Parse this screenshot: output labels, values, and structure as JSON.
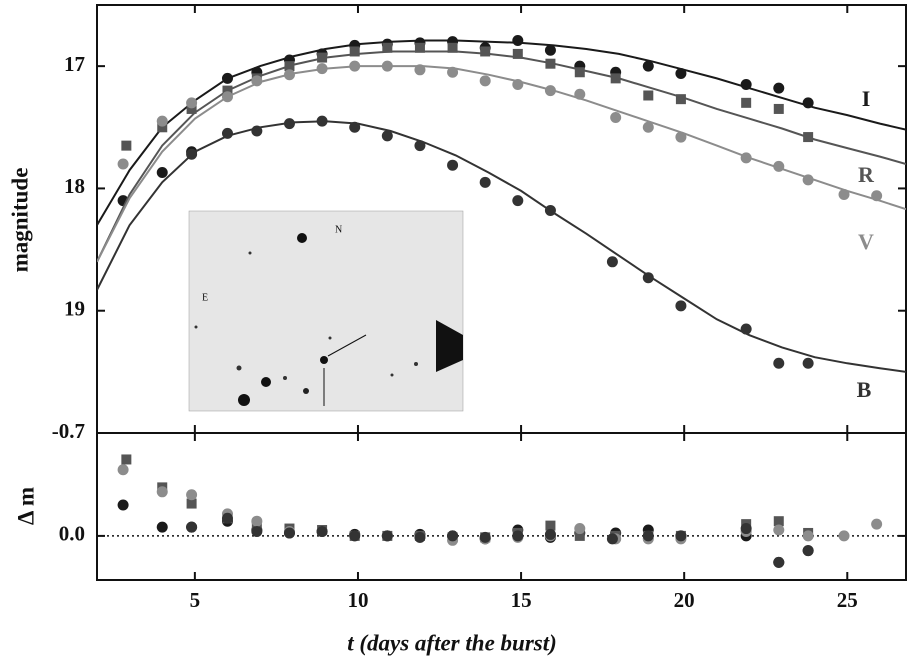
{
  "chart_data": [
    {
      "type": "scatter",
      "ylabel": "magnitude",
      "xlim": [
        2,
        26.8
      ],
      "xticks": [
        5,
        10,
        15,
        20,
        25
      ],
      "ylim": [
        20,
        16.5
      ],
      "yticks": [
        17,
        18,
        19
      ],
      "inset": {
        "labels": [
          "N",
          "E"
        ]
      },
      "series": [
        {
          "name": "I",
          "color": "#1a1a1a",
          "marker": "circle",
          "x": [
            2.8,
            4,
            4.9,
            6,
            6.9,
            7.9,
            8.9,
            9.9,
            10.9,
            11.9,
            12.9,
            13.9,
            14.9,
            15.9,
            16.8,
            17.9,
            18.9,
            19.9,
            21.9,
            22.9,
            23.8
          ],
          "values": [
            18.1,
            17.87,
            17.7,
            17.1,
            17.05,
            16.95,
            16.9,
            16.83,
            16.82,
            16.81,
            16.8,
            16.85,
            16.79,
            16.87,
            17.0,
            17.05,
            17.0,
            17.06,
            17.15,
            17.18,
            17.3
          ],
          "fit": [
            18.3,
            17.85,
            17.5,
            17.28,
            17.1,
            17.0,
            16.92,
            16.86,
            16.82,
            16.8,
            16.79,
            16.79,
            16.8,
            16.81,
            16.83,
            16.86,
            16.9,
            16.96,
            17.03,
            17.1,
            17.18,
            17.26,
            17.34,
            17.4,
            17.47,
            17.52
          ]
        },
        {
          "name": "R",
          "color": "#555555",
          "marker": "square",
          "x": [
            2.9,
            4,
            4.9,
            6,
            6.9,
            7.9,
            8.9,
            9.9,
            10.9,
            11.9,
            12.9,
            13.9,
            14.9,
            15.9,
            16.8,
            17.9,
            18.9,
            19.9,
            21.9,
            22.9,
            23.8
          ],
          "values": [
            17.65,
            17.5,
            17.35,
            17.2,
            17.1,
            17.0,
            16.93,
            16.88,
            16.85,
            16.85,
            16.85,
            16.88,
            16.9,
            16.98,
            17.05,
            17.1,
            17.24,
            17.27,
            17.3,
            17.35,
            17.58
          ],
          "fit": [
            18.6,
            18.05,
            17.65,
            17.38,
            17.2,
            17.08,
            16.99,
            16.93,
            16.9,
            16.88,
            16.88,
            16.88,
            16.9,
            16.93,
            16.98,
            17.04,
            17.1,
            17.18,
            17.26,
            17.35,
            17.43,
            17.51,
            17.6,
            17.67,
            17.74,
            17.8
          ]
        },
        {
          "name": "V",
          "color": "#8c8c8c",
          "marker": "circle",
          "x": [
            2.8,
            4,
            4.9,
            6,
            6.9,
            7.9,
            8.9,
            9.9,
            10.9,
            11.9,
            12.9,
            13.9,
            14.9,
            15.9,
            16.8,
            17.9,
            18.9,
            19.9,
            21.9,
            22.9,
            23.8,
            24.9,
            25.9
          ],
          "values": [
            17.8,
            17.45,
            17.3,
            17.25,
            17.12,
            17.07,
            17.02,
            17.0,
            17.0,
            17.03,
            17.05,
            17.12,
            17.15,
            17.2,
            17.23,
            17.42,
            17.5,
            17.58,
            17.75,
            17.82,
            17.93,
            18.05,
            18.06
          ],
          "fit": [
            18.6,
            18.08,
            17.7,
            17.43,
            17.25,
            17.13,
            17.06,
            17.02,
            17.0,
            17.0,
            17.0,
            17.02,
            17.07,
            17.13,
            17.2,
            17.28,
            17.37,
            17.46,
            17.55,
            17.65,
            17.75,
            17.84,
            17.93,
            18.02,
            18.1,
            18.17
          ]
        },
        {
          "name": "B",
          "color": "#333333",
          "marker": "circle",
          "x": [
            4.9,
            6,
            6.9,
            7.9,
            8.9,
            9.9,
            10.9,
            11.9,
            12.9,
            13.9,
            14.9,
            15.9,
            17.8,
            18.9,
            19.9,
            21.9,
            22.9,
            23.8
          ],
          "values": [
            17.72,
            17.55,
            17.53,
            17.47,
            17.45,
            17.5,
            17.57,
            17.65,
            17.81,
            17.95,
            18.1,
            18.18,
            18.6,
            18.73,
            18.96,
            19.15,
            19.43,
            19.43
          ],
          "fit": [
            18.83,
            18.3,
            17.95,
            17.7,
            17.57,
            17.5,
            17.46,
            17.45,
            17.47,
            17.53,
            17.62,
            17.73,
            17.87,
            18.02,
            18.2,
            18.37,
            18.55,
            18.73,
            18.9,
            19.07,
            19.2,
            19.3,
            19.38,
            19.43,
            19.47,
            19.5
          ]
        }
      ],
      "fit_x": [
        2,
        3,
        4,
        5,
        6,
        7,
        8,
        9,
        10,
        11,
        12,
        13,
        14,
        15,
        16,
        17,
        18,
        19,
        20,
        21,
        22,
        23,
        24,
        25,
        26,
        26.8
      ]
    },
    {
      "type": "scatter",
      "ylabel": "Δ m",
      "xlabel": "t (days after the burst)",
      "xlim": [
        2,
        26.8
      ],
      "xticks": [
        5,
        10,
        15,
        20,
        25
      ],
      "ylim": [
        0.3,
        -0.7
      ],
      "yticks": [
        {
          "value": -0.7,
          "label": "-0.7"
        },
        {
          "value": 0,
          "label": "0.0"
        }
      ],
      "reference_line": 0,
      "series": [
        {
          "color": "#1a1a1a",
          "marker": "circle",
          "x": [
            2.8,
            4,
            4.9,
            6,
            6.9,
            7.9,
            8.9,
            9.9,
            10.9,
            11.9,
            12.9,
            13.9,
            14.9,
            15.9,
            16.8,
            17.9,
            18.9,
            19.9,
            21.9,
            22.9,
            23.8
          ],
          "values": [
            -0.21,
            -0.06,
            -0.06,
            -0.1,
            -0.04,
            -0.02,
            -0.03,
            -0.01,
            0.0,
            -0.01,
            0.0,
            0.02,
            -0.04,
            0.01,
            -0.02,
            -0.02,
            -0.04,
            0.0,
            0.0,
            0.18,
            0.1
          ]
        },
        {
          "color": "#555555",
          "marker": "square",
          "x": [
            2.9,
            4,
            4.9,
            6,
            6.9,
            7.9,
            8.9,
            9.9,
            10.9,
            11.9,
            12.9,
            13.9,
            14.9,
            15.9,
            16.8,
            17.9,
            18.9,
            19.9,
            21.9,
            22.9,
            23.8
          ],
          "values": [
            -0.52,
            -0.33,
            -0.22,
            -0.12,
            -0.07,
            -0.05,
            -0.04,
            0.0,
            0.0,
            0.0,
            0.01,
            0.01,
            -0.02,
            -0.07,
            0.0,
            0.0,
            0.0,
            0.0,
            -0.08,
            -0.1,
            -0.02
          ]
        },
        {
          "color": "#8c8c8c",
          "marker": "circle",
          "x": [
            2.8,
            4,
            4.9,
            6,
            6.9,
            7.9,
            8.9,
            9.9,
            10.9,
            11.9,
            12.9,
            13.9,
            14.9,
            15.9,
            16.8,
            17.9,
            18.9,
            19.9,
            21.9,
            22.9,
            23.8,
            24.9,
            25.9
          ],
          "values": [
            -0.45,
            -0.3,
            -0.28,
            -0.15,
            -0.1,
            -0.03,
            -0.03,
            0.0,
            0.0,
            0.01,
            0.03,
            0.02,
            0.01,
            0.0,
            -0.05,
            0.02,
            0.02,
            0.02,
            -0.03,
            -0.04,
            0.0,
            0.0,
            -0.08
          ]
        },
        {
          "color": "#333333",
          "marker": "circle",
          "x": [
            4.9,
            6,
            6.9,
            7.9,
            8.9,
            9.9,
            10.9,
            11.9,
            12.9,
            13.9,
            14.9,
            15.9,
            17.8,
            18.9,
            19.9,
            21.9,
            22.9,
            23.8
          ],
          "values": [
            -0.06,
            -0.12,
            -0.03,
            -0.02,
            -0.03,
            0.0,
            0.0,
            0.01,
            0.0,
            0.01,
            0.0,
            -0.01,
            0.02,
            0.0,
            0.0,
            -0.05,
            0.18,
            0.1
          ]
        }
      ]
    }
  ]
}
